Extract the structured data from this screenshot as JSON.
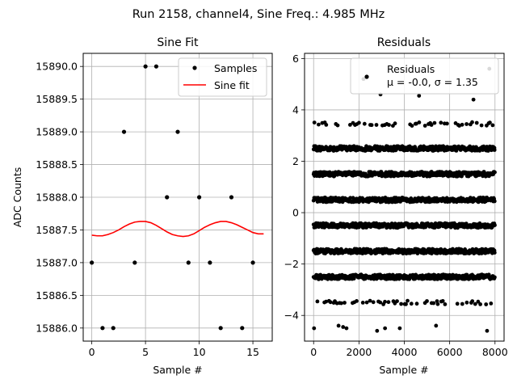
{
  "figure": {
    "suptitle": "Run 2158, channel4, Sine Freq.: 4.985 MHz"
  },
  "chart_data": [
    {
      "type": "scatter",
      "title": "Sine Fit",
      "xlabel": "Sample #",
      "ylabel": "ADC Counts",
      "xlim": [
        -0.8,
        16.8
      ],
      "ylim": [
        15885.8,
        15890.2
      ],
      "xticks": [
        0,
        5,
        10,
        15
      ],
      "yticks": [
        15886.0,
        15886.5,
        15887.0,
        15887.5,
        15888.0,
        15888.5,
        15889.0,
        15889.5,
        15890.0
      ],
      "ytick_labels": [
        "15886.0",
        "15886.5",
        "15887.0",
        "15887.5",
        "15888.0",
        "15888.5",
        "15889.0",
        "15889.5",
        "15890.0"
      ],
      "grid": true,
      "legend_position": "top-right",
      "series": [
        {
          "name": "Samples",
          "kind": "scatter",
          "color": "#000000",
          "x": [
            0,
            1,
            2,
            3,
            4,
            5,
            6,
            7,
            8,
            9,
            10,
            11,
            12,
            13,
            14,
            15
          ],
          "y": [
            15887,
            15886,
            15886,
            15889,
            15887,
            15890,
            15890,
            15888,
            15889,
            15887,
            15888,
            15887,
            15886,
            15888,
            15886,
            15887
          ]
        },
        {
          "name": "Sine fit",
          "kind": "line",
          "color": "#ff0000",
          "x": [
            0,
            0.5,
            1,
            1.5,
            2,
            2.5,
            3,
            3.5,
            4,
            4.5,
            5,
            5.5,
            6,
            6.5,
            7,
            7.5,
            8,
            8.5,
            9,
            9.5,
            10,
            10.5,
            11,
            11.5,
            12,
            12.5,
            13,
            13.5,
            14,
            14.5,
            15,
            15.5,
            16
          ],
          "y": [
            15887.42,
            15887.41,
            15887.41,
            15887.43,
            15887.46,
            15887.5,
            15887.55,
            15887.59,
            15887.62,
            15887.63,
            15887.63,
            15887.61,
            15887.57,
            15887.52,
            15887.47,
            15887.43,
            15887.41,
            15887.4,
            15887.41,
            15887.44,
            15887.49,
            15887.54,
            15887.58,
            15887.61,
            15887.63,
            15887.63,
            15887.61,
            15887.58,
            15887.54,
            15887.5,
            15887.46,
            15887.44,
            15887.44
          ]
        }
      ]
    },
    {
      "type": "scatter",
      "title": "Residuals",
      "xlabel": "Sample #",
      "ylabel": "",
      "xlim": [
        -400,
        8400
      ],
      "ylim": [
        -5.0,
        6.2
      ],
      "xticks": [
        0,
        2000,
        4000,
        6000,
        8000
      ],
      "yticks": [
        -4,
        -2,
        0,
        2,
        4,
        6
      ],
      "ytick_labels": [
        "−4",
        "−2",
        "0",
        "2",
        "4",
        "6"
      ],
      "grid": true,
      "legend_position": "top-right",
      "legend_lines": [
        "Residuals",
        "μ = -0.0, σ = 1.35"
      ],
      "sample_count": 8000,
      "bands": [
        {
          "level": 2.5,
          "density": "dense",
          "spread": 0.09
        },
        {
          "level": 1.5,
          "density": "dense",
          "spread": 0.09
        },
        {
          "level": 0.5,
          "density": "dense",
          "spread": 0.09
        },
        {
          "level": -0.5,
          "density": "dense",
          "spread": 0.09
        },
        {
          "level": -1.5,
          "density": "dense",
          "spread": 0.09
        },
        {
          "level": -2.5,
          "density": "dense",
          "spread": 0.09
        },
        {
          "level": 3.45,
          "density": "sparse",
          "spread": 0.07
        },
        {
          "level": -3.5,
          "density": "sparse",
          "spread": 0.07
        }
      ],
      "outliers": [
        {
          "x": 20,
          "y": -4.5
        },
        {
          "x": 1100,
          "y": -4.4
        },
        {
          "x": 1300,
          "y": -4.45
        },
        {
          "x": 1450,
          "y": -4.5
        },
        {
          "x": 2200,
          "y": 5.2
        },
        {
          "x": 2800,
          "y": -4.6
        },
        {
          "x": 2950,
          "y": 4.6
        },
        {
          "x": 3150,
          "y": -4.5
        },
        {
          "x": 3800,
          "y": -4.5
        },
        {
          "x": 4650,
          "y": 4.55
        },
        {
          "x": 5400,
          "y": -4.4
        },
        {
          "x": 7050,
          "y": 4.4
        },
        {
          "x": 7650,
          "y": -4.6
        },
        {
          "x": 7750,
          "y": 5.6
        }
      ]
    }
  ]
}
